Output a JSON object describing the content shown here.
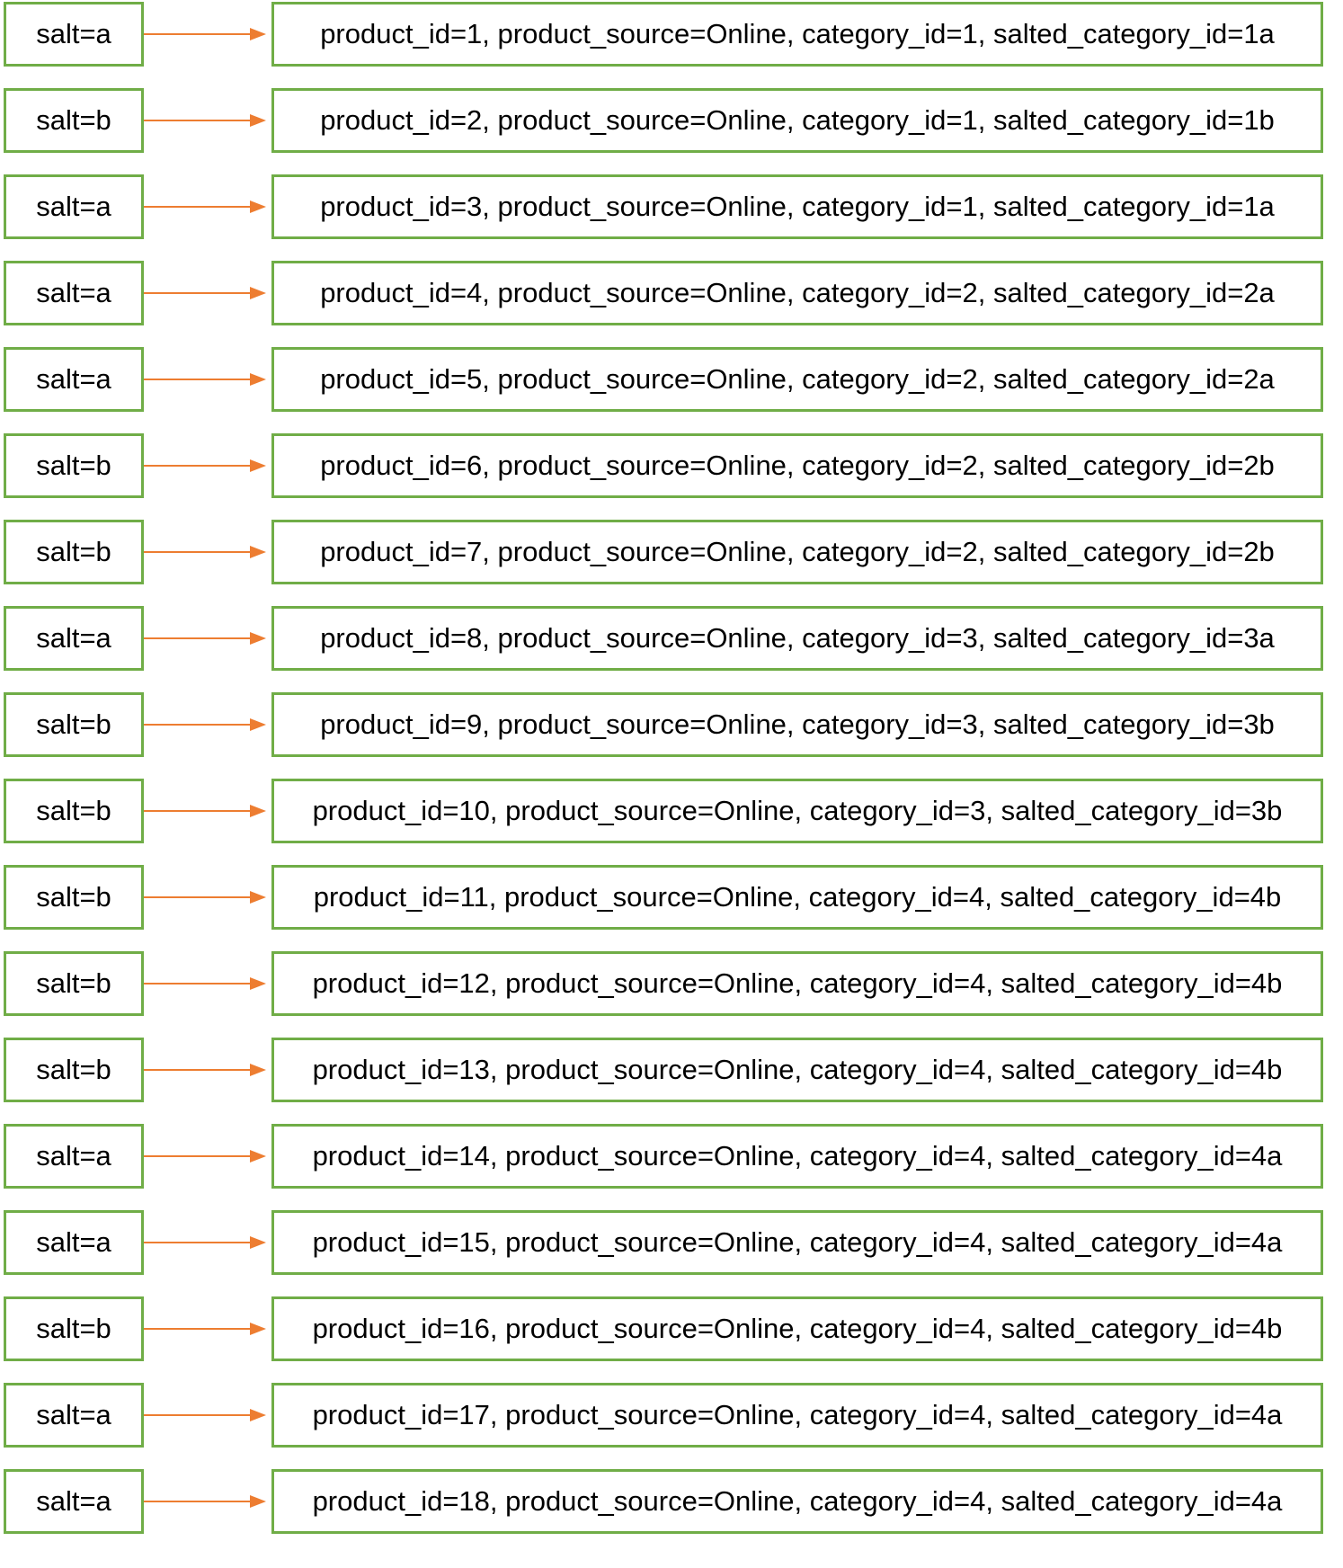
{
  "colors": {
    "box_border": "#70ad47",
    "arrow": "#ed7d31",
    "text": "#000000"
  },
  "rows": [
    {
      "salt": "salt=a",
      "record": "product_id=1, product_source=Online, category_id=1, salted_category_id=1a"
    },
    {
      "salt": "salt=b",
      "record": "product_id=2, product_source=Online, category_id=1, salted_category_id=1b"
    },
    {
      "salt": "salt=a",
      "record": "product_id=3, product_source=Online, category_id=1, salted_category_id=1a"
    },
    {
      "salt": "salt=a",
      "record": "product_id=4, product_source=Online, category_id=2, salted_category_id=2a"
    },
    {
      "salt": "salt=a",
      "record": "product_id=5, product_source=Online, category_id=2, salted_category_id=2a"
    },
    {
      "salt": "salt=b",
      "record": "product_id=6, product_source=Online, category_id=2, salted_category_id=2b"
    },
    {
      "salt": "salt=b",
      "record": "product_id=7, product_source=Online, category_id=2, salted_category_id=2b"
    },
    {
      "salt": "salt=a",
      "record": "product_id=8, product_source=Online, category_id=3, salted_category_id=3a"
    },
    {
      "salt": "salt=b",
      "record": "product_id=9, product_source=Online, category_id=3, salted_category_id=3b"
    },
    {
      "salt": "salt=b",
      "record": "product_id=10, product_source=Online, category_id=3, salted_category_id=3b"
    },
    {
      "salt": "salt=b",
      "record": "product_id=11, product_source=Online, category_id=4, salted_category_id=4b"
    },
    {
      "salt": "salt=b",
      "record": "product_id=12, product_source=Online, category_id=4, salted_category_id=4b"
    },
    {
      "salt": "salt=b",
      "record": "product_id=13, product_source=Online, category_id=4, salted_category_id=4b"
    },
    {
      "salt": "salt=a",
      "record": "product_id=14, product_source=Online, category_id=4, salted_category_id=4a"
    },
    {
      "salt": "salt=a",
      "record": "product_id=15, product_source=Online, category_id=4, salted_category_id=4a"
    },
    {
      "salt": "salt=b",
      "record": "product_id=16, product_source=Online, category_id=4, salted_category_id=4b"
    },
    {
      "salt": "salt=a",
      "record": "product_id=17, product_source=Online, category_id=4, salted_category_id=4a"
    },
    {
      "salt": "salt=a",
      "record": "product_id=18, product_source=Online, category_id=4, salted_category_id=4a"
    }
  ]
}
